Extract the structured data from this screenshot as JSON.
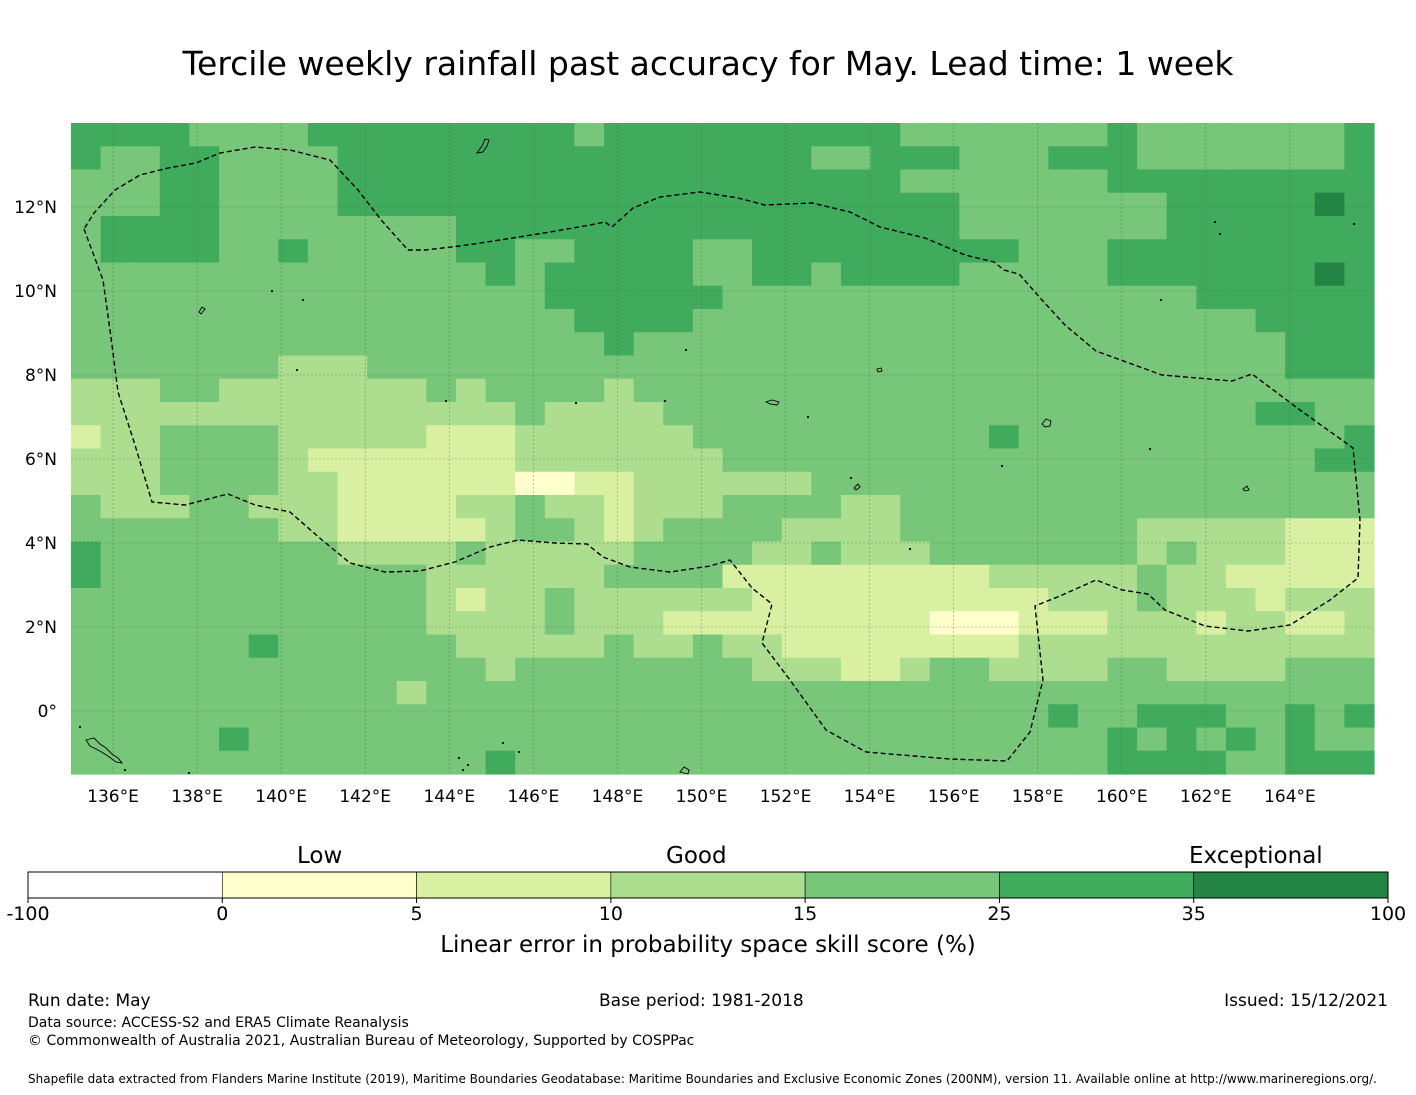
{
  "title": "Tercile weekly rainfall past accuracy for May. Lead time: 1 week",
  "map": {
    "lon_range": [
      135,
      166
    ],
    "lat_range": [
      -1.5,
      14
    ],
    "cell_deg": 0.8333,
    "lon_ticks": [
      136,
      138,
      140,
      142,
      144,
      146,
      148,
      150,
      152,
      154,
      156,
      158,
      160,
      162,
      164
    ],
    "lon_tick_labels": [
      "136°E",
      "138°E",
      "140°E",
      "142°E",
      "144°E",
      "146°E",
      "148°E",
      "150°E",
      "152°E",
      "154°E",
      "156°E",
      "158°E",
      "160°E",
      "162°E",
      "164°E"
    ],
    "lat_ticks": [
      0,
      2,
      4,
      6,
      8,
      10,
      12
    ],
    "lat_tick_labels": [
      "0°",
      "2°N",
      "4°N",
      "6°N",
      "8°N",
      "10°N",
      "12°N"
    ],
    "grid": true,
    "border_style": "dashed",
    "color_key": {
      "A": "#ffffcc",
      "B": "#d9f0a3",
      "C": "#addd8e",
      "D": "#78c679",
      "E": "#41ab5d",
      "F": "#238443"
    },
    "rows": [
      "EEEEDDDDEEEEEEEEEDEEEEEEEEEEDDDDDDDEDDDDDDDE",
      "EDDEEDDDDEEEEEEEEEEEEEEEEDDEEEDDDEEEDDDDDDDE",
      "DDDEEDDDDEEEEEEEEEEEEEEEEEEEDDDDDDDEEEEEEEEE",
      "DDDEEDDDDEEEEEEEEEEEEEEEEEEEEEDDDDDDDEEEEEFE",
      "DEEEEDDDDDDDDEEEEEEEEEEEEEEEEEDDDDDDDEEEEEEE",
      "DEEEEDDEDDDDDEEDDEEEEDDEEEEEEEEEDDDEEEEEEEEE",
      "DDDDDDDDDDDDDDEDEEEEEDDEEDEEEEDDDDDEEEEEEEFE",
      "DDDDDDDDDDDDDDDDEEEEEEDDDDDDDDDDDDDDDDEEEEEE",
      "DDDDDDDDDDDDDDDDDEEEEDDDDDDDDDDDDDDDDDDDEEEE",
      "DDDDDDDDDDDDDDDDDDEDDDDDDDDDDDDDDDDDDDDDDEEE",
      "DDDDDDDCCCDDDDDDDDDDDDDDDDDDDDDDDDDDDDDDDEEE",
      "CCCDDCCCCCCCDCDDDDCDDDDDDDDDDDDDDDDDDDDDDDDD",
      "CCCCCCCCCCCCCCCDCCCCDDDDDDDDDDDDDDDDDDDDEEDD",
      "BCCDDDDCCCCCBBBCCCCCCDDDDDDDDDDEDDDDDDDDDDDE",
      "CCCDDDDCBBBBBBBCCCCCCCDDDDDDDDDDDDDDDDDDDDEE",
      "CCCDDDDCCBBBBBBAABBCCCCCCDDDDDDDDDDDDDDDDDDD",
      "DCCCDDCCCBBBBCCDCCBCCCDDDDCCDDDDDDDDDDDDDDDD",
      "DDDDDDDCCBBBBBCDDCBCDDDDCCCCDDDDDDDDCCCCCBBB",
      "EDDDDDDDDCCCCDCCCCCDDDDCCDCCCDDDDDDDCDCCCBBB",
      "EDDDDDDDDDDDCCCCCCDDDDBBBBBBBBBCCCCCDCCBBBBB",
      "DDDDDDDDDDDDCBCCDCCCCCCBBBBBBBBBBCCCDCCCBCCC",
      "DDDDDDDDDDDDCCCCDCCCBBBBBBBBBAAABBBCCCBCCBBC",
      "DDDDDDEDDDDDDCCCCCDCCDCCBBBBBBBBCCCCCCCCCCCC",
      "DDDDDDDDDDDDDDCDDDDDDDDCCCBBCDDCCCCDDCCCCDDD",
      "DDDDDDDDDDDCDDDDDDDDDDDDDDDDDDDDDDDDDDDDDDDD",
      "DDDDDDDDDDDDDDDDDDDDDDDDDDDDDDDDDEDDEEEDDEDE",
      "DDDDDEDDDDDDDDDDDDDDDDDDDDDDDDDDDDDEDEDEDEDD",
      "DDDDDDDDDDDDDDEDDDDDDDDDDDDDDDDDDDDEEEEDDEEE"
    ]
  },
  "colorbar": {
    "categories": [
      "Low",
      "Good",
      "Exceptional"
    ],
    "ticks": [
      "-100",
      "0",
      "5",
      "10",
      "15",
      "25",
      "35",
      "100"
    ],
    "colors": [
      "#ffffff",
      "#ffffcc",
      "#d9f0a3",
      "#addd8e",
      "#78c679",
      "#41ab5d",
      "#238443"
    ],
    "label": "Linear error in probability space skill score (%)"
  },
  "footer": {
    "run_date": "Run date: May",
    "base_period": "Base period: 1981-2018",
    "issued": "Issued: 15/12/2021",
    "data_source": "Data source: ACCESS-S2 and ERA5 Climate Reanalysis",
    "copyright": "© Commonwealth of Australia 2021, Australian Bureau of Meteorology, Supported by COSPPac",
    "shapefile": "Shapefile data extracted from Flanders Marine Institute (2019), Maritime Boundaries Geodatabase: Maritime Boundaries and Exclusive Economic Zones (200NM), version 11. Available online at http://www.marineregions.org/."
  }
}
